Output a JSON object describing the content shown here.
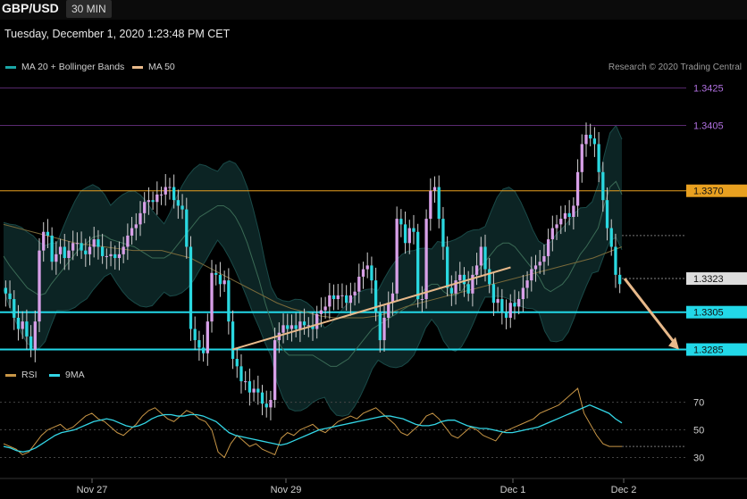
{
  "header": {
    "symbol": "GBP/USD",
    "timeframe": "30 MIN",
    "datetime": "Tuesday, December 1, 2020 1:23:48 PM CET"
  },
  "legend": {
    "ma20_label": "MA 20 + Bollinger Bands",
    "ma20_color": "#1aa6a6",
    "ma50_label": "MA 50",
    "ma50_color": "#e8b98a",
    "credit": "Research © 2020 Trading Central"
  },
  "rsi_legend": {
    "rsi_label": "RSI",
    "rsi_color": "#c89646",
    "ma9_label": "9MA",
    "ma9_color": "#33d6e6"
  },
  "chart_data": {
    "type": "candlestick",
    "price_ylim": [
      1.328,
      1.3432
    ],
    "x_labels": [
      "Nov 27",
      "Nov 29",
      "Dec 1",
      "Dec 2"
    ],
    "candles_close": [
      1.3315,
      1.3312,
      1.3302,
      1.3296,
      1.33,
      1.3292,
      1.3285,
      1.33,
      1.3338,
      1.3348,
      1.3346,
      1.3332,
      1.3336,
      1.334,
      1.3334,
      1.3338,
      1.3342,
      1.3342,
      1.3338,
      1.3336,
      1.334,
      1.3344,
      1.334,
      1.3335,
      1.3335,
      1.3336,
      1.3334,
      1.3336,
      1.334,
      1.3346,
      1.335,
      1.3352,
      1.3358,
      1.3364,
      1.3365,
      1.3364,
      1.3368,
      1.3368,
      1.3372,
      1.3372,
      1.3365,
      1.3362,
      1.336,
      1.334,
      1.3296,
      1.329,
      1.3286,
      1.3283,
      1.33,
      1.3326,
      1.3325,
      1.332,
      1.3322,
      1.33,
      1.328,
      1.3276,
      1.3268,
      1.3268,
      1.3262,
      1.3264,
      1.3262,
      1.3256,
      1.3254,
      1.3258,
      1.329,
      1.3294,
      1.3298,
      1.3296,
      1.3298,
      1.3296,
      1.33,
      1.3298,
      1.3298,
      1.3296,
      1.3304,
      1.3306,
      1.3308,
      1.3314,
      1.3312,
      1.3314,
      1.3314,
      1.331,
      1.3314,
      1.3316,
      1.3324,
      1.3328,
      1.333,
      1.3322,
      1.3305,
      1.329,
      1.3302,
      1.331,
      1.3315,
      1.3355,
      1.3352,
      1.3342,
      1.335,
      1.3348,
      1.3312,
      1.3312,
      1.3355,
      1.337,
      1.3372,
      1.3355,
      1.334,
      1.3318,
      1.3315,
      1.3322,
      1.3325,
      1.332,
      1.3315,
      1.3325,
      1.333,
      1.334,
      1.3328,
      1.332,
      1.331,
      1.3312,
      1.3305,
      1.3302,
      1.331,
      1.3308,
      1.3312,
      1.3318,
      1.3322,
      1.3328,
      1.333,
      1.3332,
      1.3335,
      1.3344,
      1.335,
      1.3352,
      1.3355,
      1.3358,
      1.3356,
      1.3362,
      1.338,
      1.3395,
      1.34,
      1.3398,
      1.3395,
      1.338,
      1.3365,
      1.335,
      1.334,
      1.3325,
      1.332
    ],
    "ma20": [
      1.3335,
      1.333,
      1.3326,
      1.3322,
      1.3318,
      1.3316,
      1.3314,
      1.3315,
      1.332,
      1.3324,
      1.3328,
      1.3332,
      1.3336,
      1.334,
      1.3342,
      1.3345,
      1.3346,
      1.3346,
      1.3344,
      1.3343,
      1.3342,
      1.3341,
      1.334,
      1.3338,
      1.3336,
      1.3334,
      1.3334,
      1.3334,
      1.3336,
      1.334,
      1.3344,
      1.3348,
      1.3352,
      1.3356,
      1.3358,
      1.336,
      1.3362,
      1.3362,
      1.336,
      1.3356,
      1.335,
      1.3342,
      1.3332,
      1.3322,
      1.331,
      1.33,
      1.329,
      1.3285,
      1.3282,
      1.3282,
      1.3282,
      1.3282,
      1.3282,
      1.328,
      1.3278,
      1.3276,
      1.3276,
      1.3278,
      1.328,
      1.3284,
      1.3288,
      1.3292,
      1.3296,
      1.3298,
      1.33,
      1.3302,
      1.3304,
      1.3306,
      1.3308,
      1.331,
      1.3314,
      1.3318,
      1.332,
      1.332,
      1.3316,
      1.3314,
      1.3314,
      1.3316,
      1.332,
      1.3324,
      1.3328,
      1.3332,
      1.3336,
      1.334,
      1.3342,
      1.3342,
      1.334,
      1.3336,
      1.3332,
      1.3328,
      1.3324,
      1.3318,
      1.3316,
      1.3318,
      1.332,
      1.3324,
      1.333,
      1.3336,
      1.334,
      1.3345,
      1.335,
      1.3362,
      1.3372,
      1.3375,
      1.3368
    ],
    "ma50": [
      1.3352,
      1.335,
      1.3348,
      1.3346,
      1.3344,
      1.3342,
      1.3341,
      1.334,
      1.3339,
      1.3338,
      1.3338,
      1.3338,
      1.3336,
      1.3334,
      1.333,
      1.3326,
      1.3322,
      1.3318,
      1.3314,
      1.331,
      1.3307,
      1.3305,
      1.3303,
      1.3302,
      1.3302,
      1.3302,
      1.3303,
      1.3305,
      1.3308,
      1.331,
      1.3312,
      1.3314,
      1.3316,
      1.3318,
      1.332,
      1.3322,
      1.3324,
      1.3326,
      1.3328,
      1.333,
      1.3332,
      1.3334,
      1.3337,
      1.334
    ],
    "levels": [
      {
        "value": 1.3425,
        "label": "1.3425",
        "color": "#a050c8"
      },
      {
        "value": 1.3405,
        "label": "1.3405",
        "color": "#a050c8"
      },
      {
        "value": 1.337,
        "label": "1.3370",
        "color": "#e8a020"
      },
      {
        "value": 1.3323,
        "label": "1.3323",
        "color": "#dddddd"
      },
      {
        "value": 1.3305,
        "label": "1.3305",
        "color": "#22d8e8"
      },
      {
        "value": 1.3285,
        "label": "1.3285",
        "color": "#22d8e8"
      }
    ],
    "trendline": {
      "from": [
        0.37,
        1.3285
      ],
      "to": [
        0.82,
        1.3329
      ],
      "color": "#e8b98a"
    },
    "arrow": {
      "from_price": 1.3323,
      "to_price": 1.3285,
      "color": "#e8b98a"
    },
    "rsi": {
      "ylim": [
        20,
        82
      ],
      "ticks": [
        70,
        50,
        30
      ],
      "rsi_values": [
        40,
        38,
        36,
        32,
        34,
        40,
        46,
        50,
        52,
        54,
        50,
        52,
        56,
        60,
        62,
        58,
        56,
        52,
        48,
        46,
        50,
        54,
        60,
        64,
        66,
        62,
        58,
        56,
        60,
        64,
        62,
        58,
        56,
        50,
        34,
        30,
        40,
        46,
        42,
        38,
        40,
        36,
        34,
        32,
        44,
        48,
        46,
        50,
        52,
        54,
        50,
        48,
        52,
        56,
        58,
        60,
        58,
        62,
        64,
        66,
        62,
        58,
        54,
        48,
        46,
        50,
        54,
        60,
        62,
        58,
        52,
        46,
        44,
        48,
        52,
        50,
        46,
        44,
        42,
        48,
        50,
        52,
        54,
        56,
        58,
        62,
        64,
        66,
        68,
        72,
        76,
        80,
        62,
        54,
        46,
        40,
        38,
        38,
        38
      ],
      "ma9_values": [
        38,
        37,
        35,
        34,
        35,
        37,
        40,
        43,
        46,
        48,
        49,
        50,
        52,
        54,
        56,
        57,
        58,
        57,
        55,
        53,
        52,
        53,
        55,
        58,
        60,
        61,
        61,
        60,
        60,
        61,
        61,
        60,
        58,
        56,
        52,
        48,
        46,
        45,
        44,
        43,
        42,
        41,
        40,
        39,
        40,
        42,
        44,
        46,
        48,
        50,
        51,
        52,
        53,
        54,
        55,
        56,
        57,
        58,
        59,
        60,
        60,
        59,
        58,
        56,
        54,
        53,
        53,
        54,
        56,
        57,
        57,
        55,
        53,
        52,
        51,
        51,
        50,
        49,
        48,
        48,
        49,
        50,
        51,
        52,
        54,
        56,
        58,
        60,
        62,
        64,
        66,
        68,
        66,
        64,
        62,
        58,
        55
      ]
    }
  }
}
